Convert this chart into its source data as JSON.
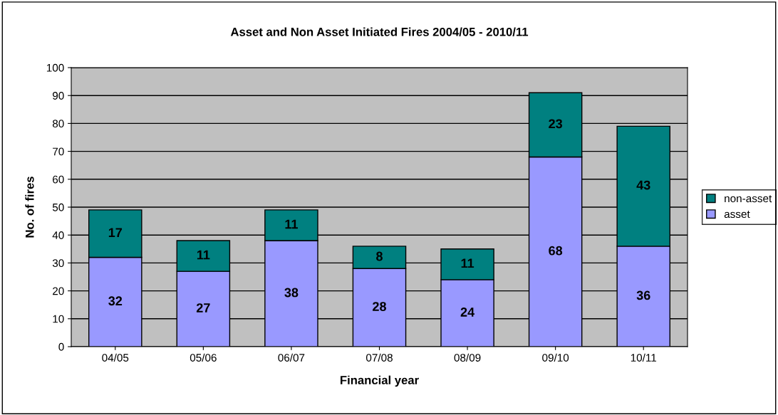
{
  "chart_data": {
    "type": "bar",
    "title": "Asset and Non Asset Initiated Fires 2004/05 - 2010/11",
    "xlabel": "Financial year",
    "ylabel": "No. of fires",
    "categories": [
      "04/05",
      "05/06",
      "06/07",
      "07/08",
      "08/09",
      "09/10",
      "10/11"
    ],
    "series": [
      {
        "name": "asset",
        "color": "#9999ff",
        "values": [
          32,
          27,
          38,
          28,
          24,
          68,
          36
        ]
      },
      {
        "name": "non-asset",
        "color": "#008080",
        "values": [
          17,
          11,
          11,
          8,
          11,
          23,
          43
        ]
      }
    ],
    "stacked": true,
    "ylim": [
      0,
      100
    ],
    "yticks": [
      0,
      10,
      20,
      30,
      40,
      50,
      60,
      70,
      80,
      90,
      100
    ],
    "grid": "y",
    "legend": "right",
    "data_labels": true
  }
}
